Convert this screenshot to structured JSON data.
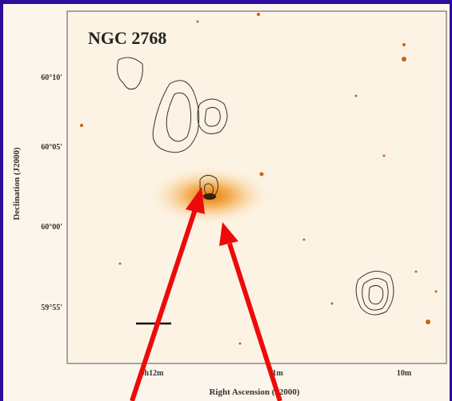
{
  "title": "NGC 2768",
  "axes": {
    "y_label": "Declination (J2000)",
    "x_label": "Right Ascension (J2000)",
    "y_ticks": [
      "60°10'",
      "60°05'",
      "60°00'",
      "59°55'"
    ],
    "x_ticks": [
      "9h12m",
      "11m",
      "10m"
    ]
  }
}
